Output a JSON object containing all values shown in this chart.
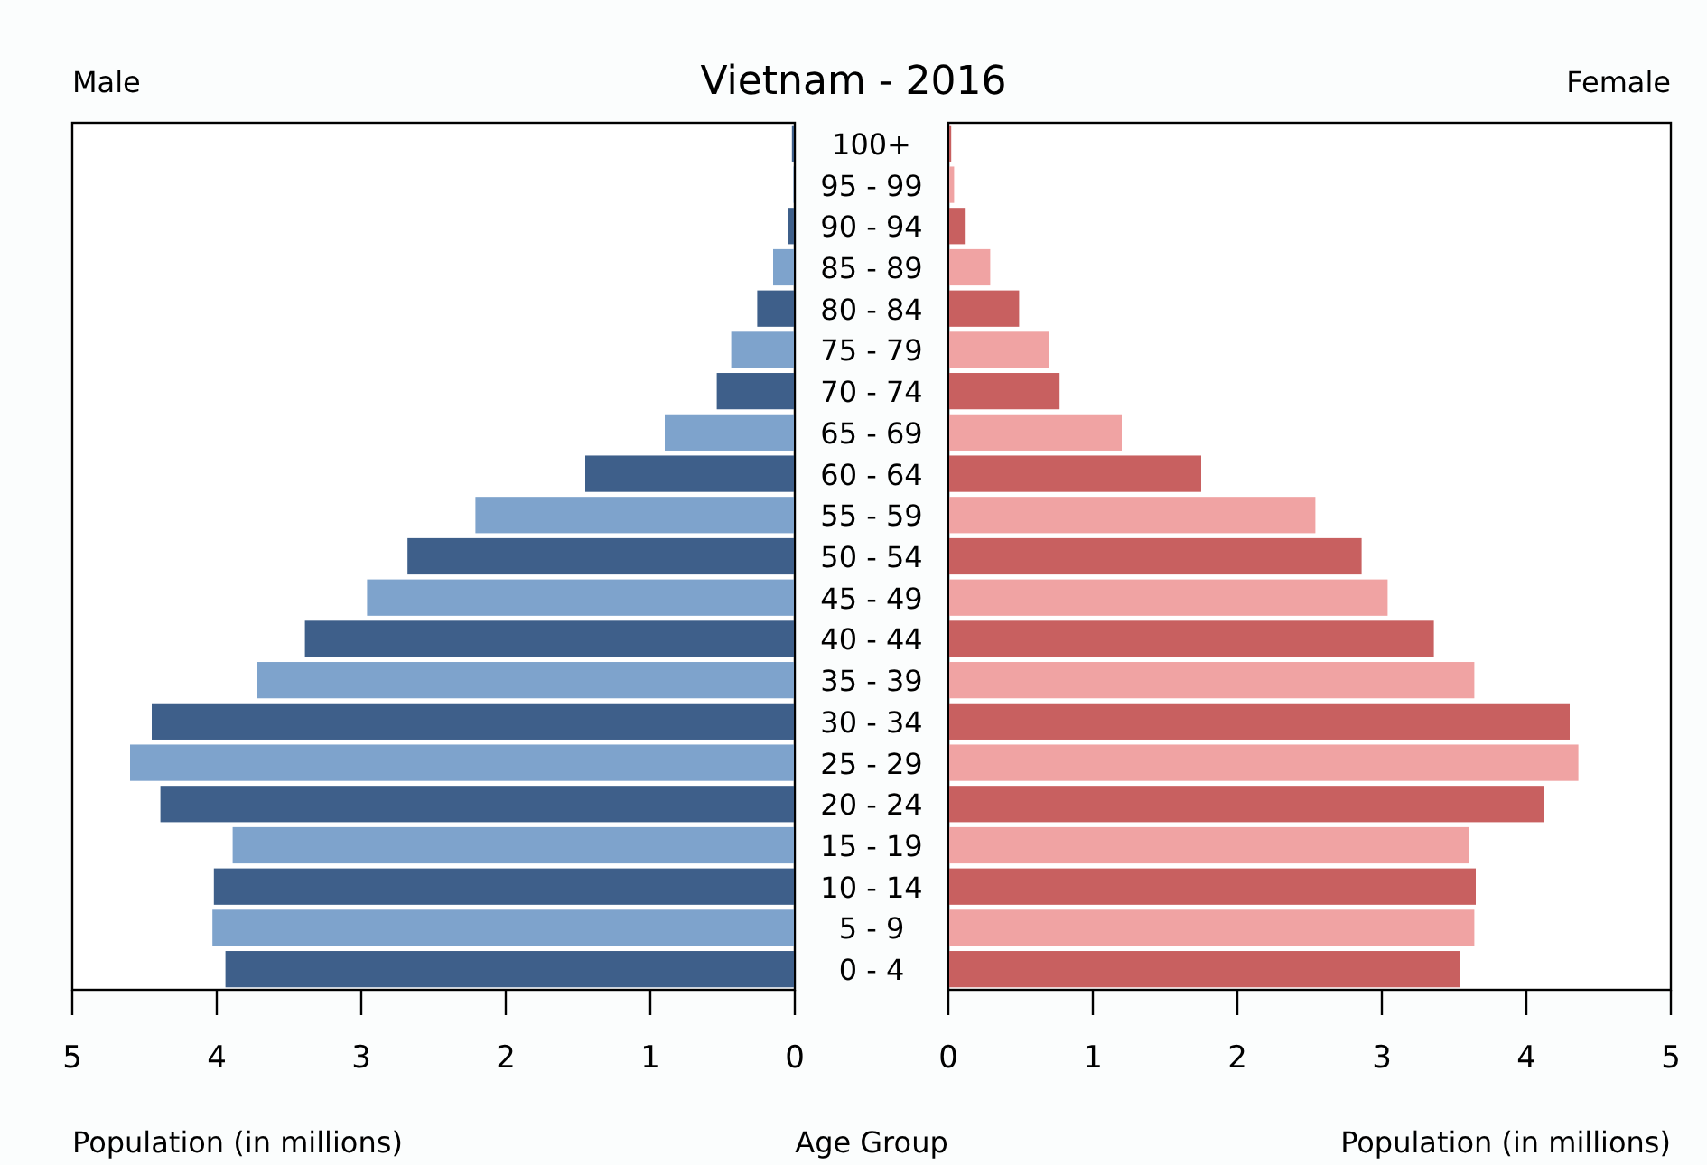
{
  "chart_data": [
    {
      "type": "bar",
      "orientation": "horizontal",
      "title": "Vietnam - 2016",
      "subtitle": "Male",
      "xlabel": "Population (in millions)",
      "ylabel": "Age Group",
      "categories": [
        "100+",
        "95 - 99",
        "90 - 94",
        "85 - 89",
        "80 - 84",
        "75 - 79",
        "70 - 74",
        "65 - 69",
        "60 - 64",
        "55 - 59",
        "50 - 54",
        "45 - 49",
        "40 - 44",
        "35 - 39",
        "30 - 34",
        "25 - 29",
        "20 - 24",
        "15 - 19",
        "10 - 14",
        "5 - 9",
        "0 - 4"
      ],
      "values": [
        0.02,
        0.01,
        0.05,
        0.15,
        0.26,
        0.44,
        0.54,
        0.9,
        1.45,
        2.21,
        2.68,
        2.96,
        3.39,
        3.72,
        4.45,
        4.6,
        4.39,
        3.89,
        4.02,
        4.03,
        3.94
      ],
      "colors": [
        "#3e5f8a",
        "#7ea3cc",
        "#3e5f8a",
        "#7ea3cc",
        "#3e5f8a",
        "#7ea3cc",
        "#3e5f8a",
        "#7ea3cc",
        "#3e5f8a",
        "#7ea3cc",
        "#3e5f8a",
        "#7ea3cc",
        "#3e5f8a",
        "#7ea3cc",
        "#3e5f8a",
        "#7ea3cc",
        "#3e5f8a",
        "#7ea3cc",
        "#3e5f8a",
        "#7ea3cc",
        "#3e5f8a"
      ],
      "xlim": [
        5,
        0
      ],
      "xticks": [
        0,
        1,
        2,
        3,
        4,
        5
      ]
    },
    {
      "type": "bar",
      "orientation": "horizontal",
      "subtitle": "Female",
      "xlabel": "Population (in millions)",
      "tick_labels": "x",
      "categories": [
        "100+",
        "95 - 99",
        "90 - 94",
        "85 - 89",
        "80 - 84",
        "75 - 79",
        "70 - 74",
        "65 - 69",
        "60 - 64",
        "55 - 59",
        "50 - 54",
        "45 - 49",
        "40 - 44",
        "35 - 39",
        "30 - 34",
        "25 - 29",
        "20 - 24",
        "15 - 19",
        "10 - 14",
        "5 - 9",
        "0 - 4"
      ],
      "values": [
        0.02,
        0.04,
        0.12,
        0.29,
        0.49,
        0.7,
        0.77,
        1.2,
        1.75,
        2.54,
        2.86,
        3.04,
        3.36,
        3.64,
        4.3,
        4.36,
        4.12,
        3.6,
        3.65,
        3.64,
        3.54
      ],
      "colors": [
        "#c86060",
        "#f0a3a3",
        "#c86060",
        "#f0a3a3",
        "#c86060",
        "#f0a3a3",
        "#c86060",
        "#f0a3a3",
        "#c86060",
        "#f0a3a3",
        "#c86060",
        "#f0a3a3",
        "#c86060",
        "#f0a3a3",
        "#c86060",
        "#f0a3a3",
        "#c86060",
        "#f0a3a3",
        "#c86060",
        "#f0a3a3",
        "#c86060"
      ],
      "xlim": [
        0,
        5
      ],
      "xticks": [
        0,
        1,
        2,
        3,
        4,
        5
      ]
    }
  ]
}
